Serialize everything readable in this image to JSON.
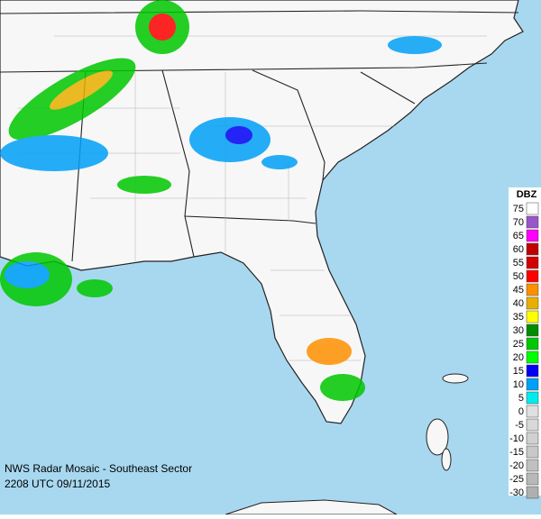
{
  "header": {
    "title": "NWS Radar Mosaic - Southeast Sector",
    "timestamp": "2208 UTC 09/11/2015"
  },
  "legend": {
    "title": "DBZ",
    "entries": [
      {
        "value": 75,
        "color": "#ffffff"
      },
      {
        "value": 70,
        "color": "#9955c9"
      },
      {
        "value": 65,
        "color": "#ff00ff"
      },
      {
        "value": 60,
        "color": "#c00000"
      },
      {
        "value": 55,
        "color": "#d40000"
      },
      {
        "value": 50,
        "color": "#ff0000"
      },
      {
        "value": 45,
        "color": "#ff9000"
      },
      {
        "value": 40,
        "color": "#e7b000"
      },
      {
        "value": 35,
        "color": "#ffff00"
      },
      {
        "value": 30,
        "color": "#008c00"
      },
      {
        "value": 25,
        "color": "#00c800"
      },
      {
        "value": 20,
        "color": "#00ff00"
      },
      {
        "value": 15,
        "color": "#0000f6"
      },
      {
        "value": 10,
        "color": "#01a0f6"
      },
      {
        "value": 5,
        "color": "#00ecec"
      },
      {
        "value": 0,
        "color": "#e0e0e0"
      },
      {
        "value": -5,
        "color": "#d8d8d8"
      },
      {
        "value": -10,
        "color": "#d0d0d0"
      },
      {
        "value": -15,
        "color": "#c8c8c8"
      },
      {
        "value": -20,
        "color": "#c0c0c0"
      },
      {
        "value": -25,
        "color": "#b8b8b8"
      },
      {
        "value": -30,
        "color": "#b0b0b0"
      }
    ]
  }
}
